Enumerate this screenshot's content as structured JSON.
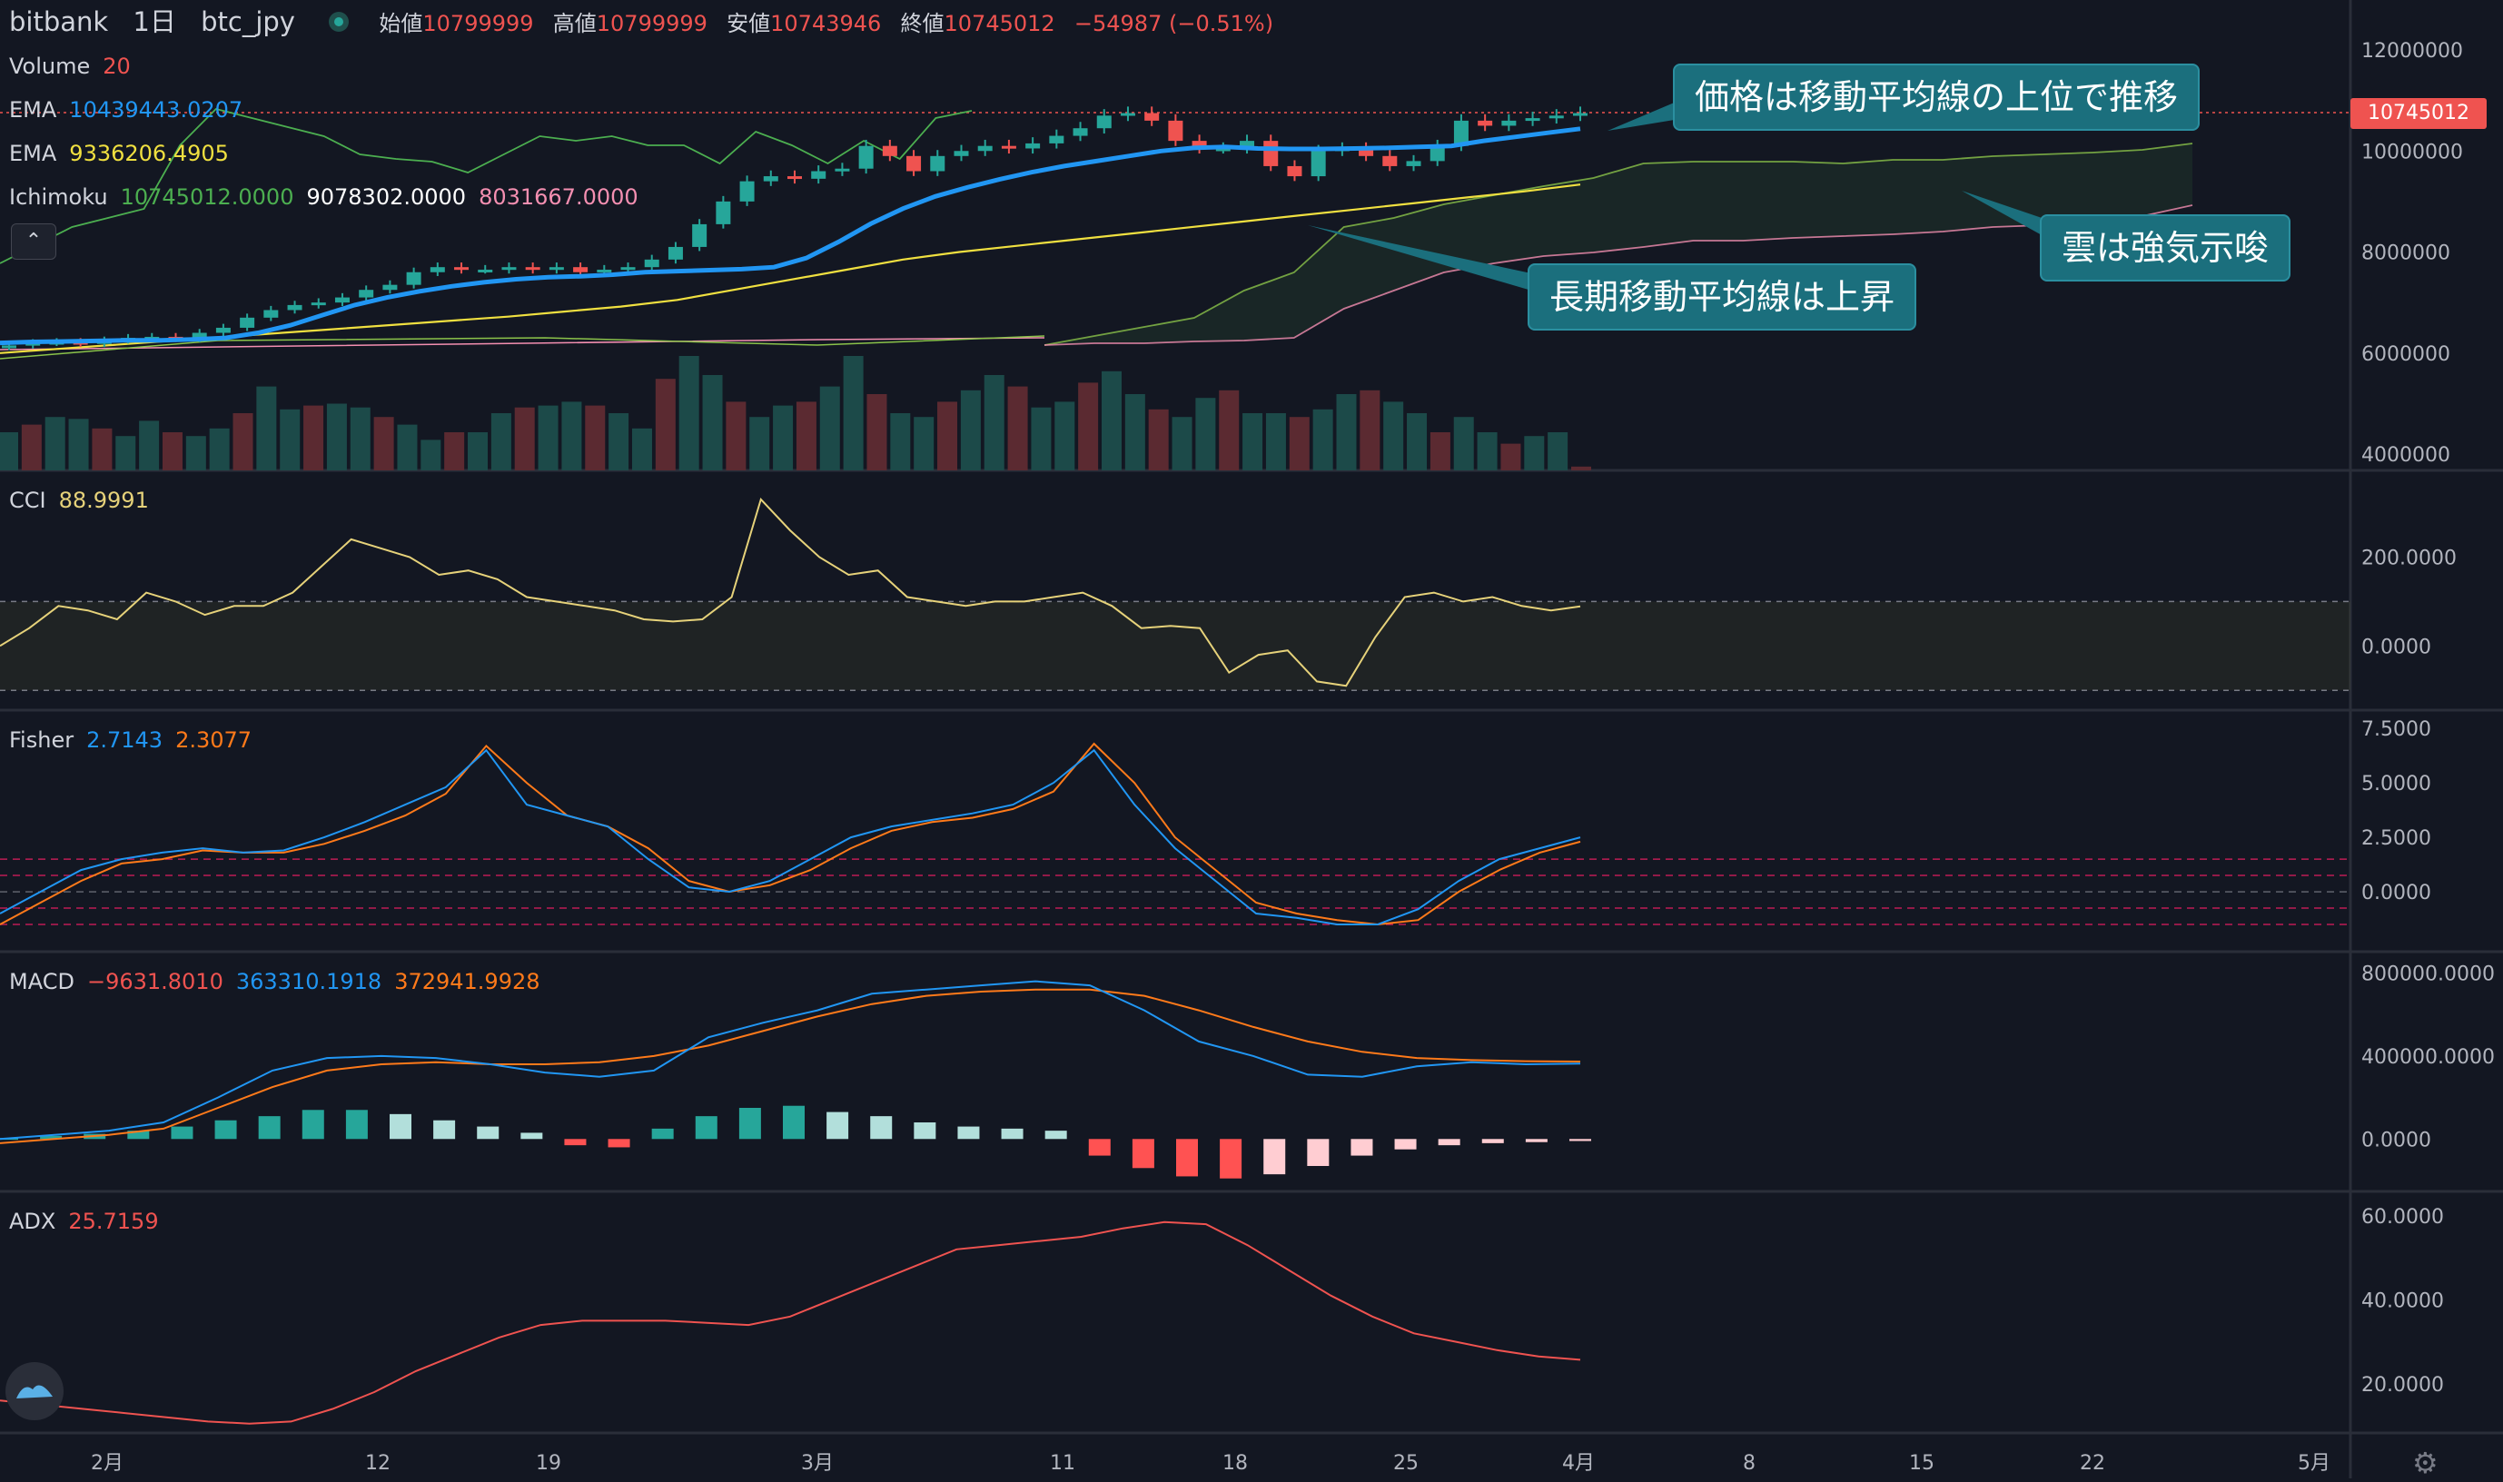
{
  "header": {
    "exchange": "bitbank",
    "interval": "1日",
    "symbol": "btc_jpy",
    "open_label": "始値",
    "open": "10799999",
    "high_label": "高値",
    "high": "10799999",
    "low_label": "安値",
    "low": "10743946",
    "close_label": "終値",
    "close": "10745012",
    "change": "−54987 (−0.51%)"
  },
  "legends": {
    "volume": {
      "label": "Volume",
      "value": "20"
    },
    "ema1": {
      "label": "EMA",
      "value": "10439443.0207"
    },
    "ema2": {
      "label": "EMA",
      "value": "9336206.4905"
    },
    "ichimoku": {
      "label": "Ichimoku",
      "v1": "10745012.0000",
      "v2": "9078302.0000",
      "v3": "8031667.0000"
    },
    "cci": {
      "label": "CCI",
      "value": "88.9991"
    },
    "fisher": {
      "label": "Fisher",
      "v1": "2.7143",
      "v2": "2.3077"
    },
    "macd": {
      "label": "MACD",
      "v1": "−9631.8010",
      "v2": "363310.1918",
      "v3": "372941.9928"
    },
    "adx": {
      "label": "ADX",
      "value": "25.7159"
    }
  },
  "price_tag": "10745012",
  "annotations": {
    "a1": "価格は移動平均線の上位で推移",
    "a2": "雲は強気示唆",
    "a3": "長期移動平均線は上昇"
  },
  "colors": {
    "up": "#26a69a",
    "down": "#ef5350",
    "ema_fast": "#2196f3",
    "ema_slow": "#f0e040",
    "ichi_lead": "#4caf50",
    "ichi_lag": "#f48fb1",
    "cci": "#e6d27a",
    "fisher1": "#2196f3",
    "fisher2": "#ff7a1a",
    "macd": "#2196f3",
    "signal": "#ff7a1a",
    "adx": "#ef5350",
    "annotation_bg": "#1b6f7d"
  },
  "icons": {
    "collapse": "chevron-up-icon",
    "settings": "gear-icon",
    "logo": "tradingview-logo-icon"
  },
  "chart_data": [
    {
      "type": "candlestick",
      "title": "bitbank 1日 btc_jpy",
      "x_ticks": [
        "2月",
        "12",
        "19",
        "3月",
        "11",
        "18",
        "25",
        "4月",
        "8",
        "15",
        "22",
        "5月"
      ],
      "y_ticks": [
        "4000000",
        "6000000",
        "8000000",
        "10000000",
        "12000000"
      ],
      "ylim": [
        4000000,
        12000000
      ],
      "series": [
        {
          "name": "price_close",
          "values": [
            6150000,
            6200000,
            6220000,
            6180000,
            6250000,
            6300000,
            6320000,
            6280000,
            6400000,
            6500000,
            6700000,
            6850000,
            6950000,
            7000000,
            7100000,
            7250000,
            7350000,
            7600000,
            7700000,
            7650000,
            7650000,
            7700000,
            7650000,
            7700000,
            7600000,
            7650000,
            7700000,
            7850000,
            8100000,
            8550000,
            9000000,
            9400000,
            9500000,
            9450000,
            9600000,
            9650000,
            10100000,
            9900000,
            9600000,
            9900000,
            10000000,
            10100000,
            10050000,
            10150000,
            10300000,
            10450000,
            10700000,
            10750000,
            10600000,
            10200000,
            10050000,
            10050000,
            10200000,
            9700000,
            9500000,
            10000000,
            10050000,
            9900000,
            9700000,
            9800000,
            10100000,
            10600000,
            10500000,
            10600000,
            10650000,
            10700000,
            10750000
          ]
        },
        {
          "name": "EMA 20",
          "values": [
            6200000,
            6220000,
            6230000,
            6240000,
            6250000,
            6250000,
            6270000,
            6300000,
            6400000,
            6550000,
            6750000,
            6950000,
            7100000,
            7220000,
            7320000,
            7400000,
            7460000,
            7500000,
            7520000,
            7550000,
            7600000,
            7620000,
            7640000,
            7660000,
            7700000,
            7880000,
            8200000,
            8560000,
            8860000,
            9100000,
            9280000,
            9440000,
            9580000,
            9700000,
            9800000,
            9900000,
            10000000,
            10060000,
            10080000,
            10050000,
            10040000,
            10040000,
            10050000,
            10060000,
            10080000,
            10100000,
            10200000,
            10280000,
            10360000,
            10440000
          ]
        },
        {
          "name": "EMA 100",
          "values": [
            6000000,
            6080000,
            6160000,
            6240000,
            6320000,
            6400000,
            6480000,
            6560000,
            6640000,
            6720000,
            6820000,
            6920000,
            7050000,
            7250000,
            7450000,
            7650000,
            7850000,
            8000000,
            8120000,
            8240000,
            8360000,
            8480000,
            8600000,
            8720000,
            8840000,
            8960000,
            9080000,
            9200000,
            9336206
          ]
        }
      ]
    },
    {
      "type": "bar",
      "title": "Volume",
      "values": [
        20,
        24,
        28,
        27,
        22,
        18,
        26,
        20,
        18,
        22,
        30,
        44,
        32,
        34,
        35,
        33,
        28,
        24,
        16,
        20,
        20,
        30,
        33,
        34,
        36,
        34,
        30,
        22,
        48,
        60,
        50,
        36,
        28,
        34,
        36,
        44,
        60,
        40,
        30,
        28,
        36,
        42,
        50,
        44,
        33,
        36,
        46,
        52,
        40,
        32,
        28,
        38,
        42,
        30,
        30,
        28,
        32,
        40,
        42,
        36,
        30,
        20,
        28,
        20,
        14,
        18,
        20,
        2
      ]
    },
    {
      "type": "line",
      "title": "CCI",
      "y_ticks": [
        "0.0000",
        "200.0000"
      ],
      "ylim": [
        -120,
        340
      ],
      "bands": [
        -100,
        100
      ],
      "values": [
        0,
        40,
        90,
        80,
        60,
        120,
        100,
        70,
        90,
        90,
        120,
        180,
        240,
        220,
        200,
        160,
        170,
        150,
        110,
        100,
        90,
        80,
        60,
        55,
        60,
        110,
        330,
        260,
        200,
        160,
        170,
        110,
        100,
        90,
        100,
        100,
        110,
        120,
        90,
        40,
        45,
        40,
        -60,
        -20,
        -10,
        -80,
        -90,
        20,
        110,
        120,
        100,
        110,
        90,
        80,
        89
      ]
    },
    {
      "type": "line",
      "title": "Fisher",
      "y_ticks": [
        "0.0000",
        "2.5000",
        "5.0000",
        "7.5000"
      ],
      "ylim": [
        -2,
        7.8
      ],
      "series": [
        {
          "name": "Fisher",
          "values": [
            -1,
            0,
            1,
            1.5,
            1.8,
            2,
            1.8,
            1.9,
            2.5,
            3.2,
            4,
            4.8,
            6.5,
            4,
            3.5,
            3,
            1.5,
            0.2,
            0,
            0.5,
            1.5,
            2.5,
            3,
            3.3,
            3.6,
            4,
            5,
            6.5,
            4,
            2,
            0.5,
            -1,
            -1.2,
            -1.5,
            -1.5,
            -0.8,
            0.5,
            1.5,
            2,
            2.5
          ]
        },
        {
          "name": "Trigger",
          "values": [
            -1.5,
            -0.5,
            0.5,
            1.3,
            1.5,
            1.9,
            1.8,
            1.8,
            2.2,
            2.8,
            3.5,
            4.5,
            6.7,
            5,
            3.5,
            3,
            2,
            0.5,
            0,
            0.3,
            1,
            2,
            2.8,
            3.2,
            3.4,
            3.8,
            4.6,
            6.8,
            5,
            2.5,
            1,
            -0.5,
            -1,
            -1.3,
            -1.5,
            -1.3,
            0,
            1,
            1.8,
            2.3
          ]
        }
      ]
    },
    {
      "type": "line",
      "title": "MACD",
      "y_ticks": [
        "0.0000",
        "400000.0000",
        "800000.0000"
      ],
      "ylim": [
        -200000,
        850000
      ],
      "series": [
        {
          "name": "MACD",
          "values": [
            0,
            20000,
            40000,
            80000,
            200000,
            330000,
            390000,
            400000,
            390000,
            360000,
            320000,
            300000,
            330000,
            490000,
            560000,
            620000,
            700000,
            720000,
            740000,
            760000,
            740000,
            620000,
            470000,
            400000,
            310000,
            300000,
            350000,
            370000,
            360000,
            363310
          ]
        },
        {
          "name": "Signal",
          "values": [
            -20000,
            0,
            20000,
            50000,
            150000,
            250000,
            330000,
            360000,
            370000,
            360000,
            360000,
            370000,
            400000,
            450000,
            520000,
            590000,
            650000,
            690000,
            710000,
            720000,
            720000,
            690000,
            620000,
            540000,
            470000,
            420000,
            390000,
            380000,
            375000,
            372941
          ]
        },
        {
          "name": "Histogram",
          "values": [
            5000,
            15000,
            25000,
            40000,
            60000,
            90000,
            110000,
            140000,
            140000,
            120000,
            90000,
            60000,
            30000,
            -30000,
            -40000,
            50000,
            110000,
            150000,
            160000,
            130000,
            110000,
            80000,
            60000,
            50000,
            40000,
            -80000,
            -140000,
            -180000,
            -190000,
            -170000,
            -130000,
            -80000,
            -50000,
            -30000,
            -20000,
            -15000,
            -9631
          ]
        }
      ]
    },
    {
      "type": "line",
      "title": "ADX",
      "y_ticks": [
        "20.0000",
        "40.0000",
        "60.0000"
      ],
      "ylim": [
        10,
        63
      ],
      "values": [
        16,
        15,
        14,
        13,
        12,
        11,
        10.5,
        11,
        14,
        18,
        23,
        27,
        31,
        34,
        35,
        35,
        35,
        34.5,
        34,
        36,
        40,
        44,
        48,
        52,
        53,
        54,
        55,
        57,
        58.5,
        58,
        53,
        47,
        41,
        36,
        32,
        30,
        28,
        26.5,
        25.7
      ]
    }
  ]
}
